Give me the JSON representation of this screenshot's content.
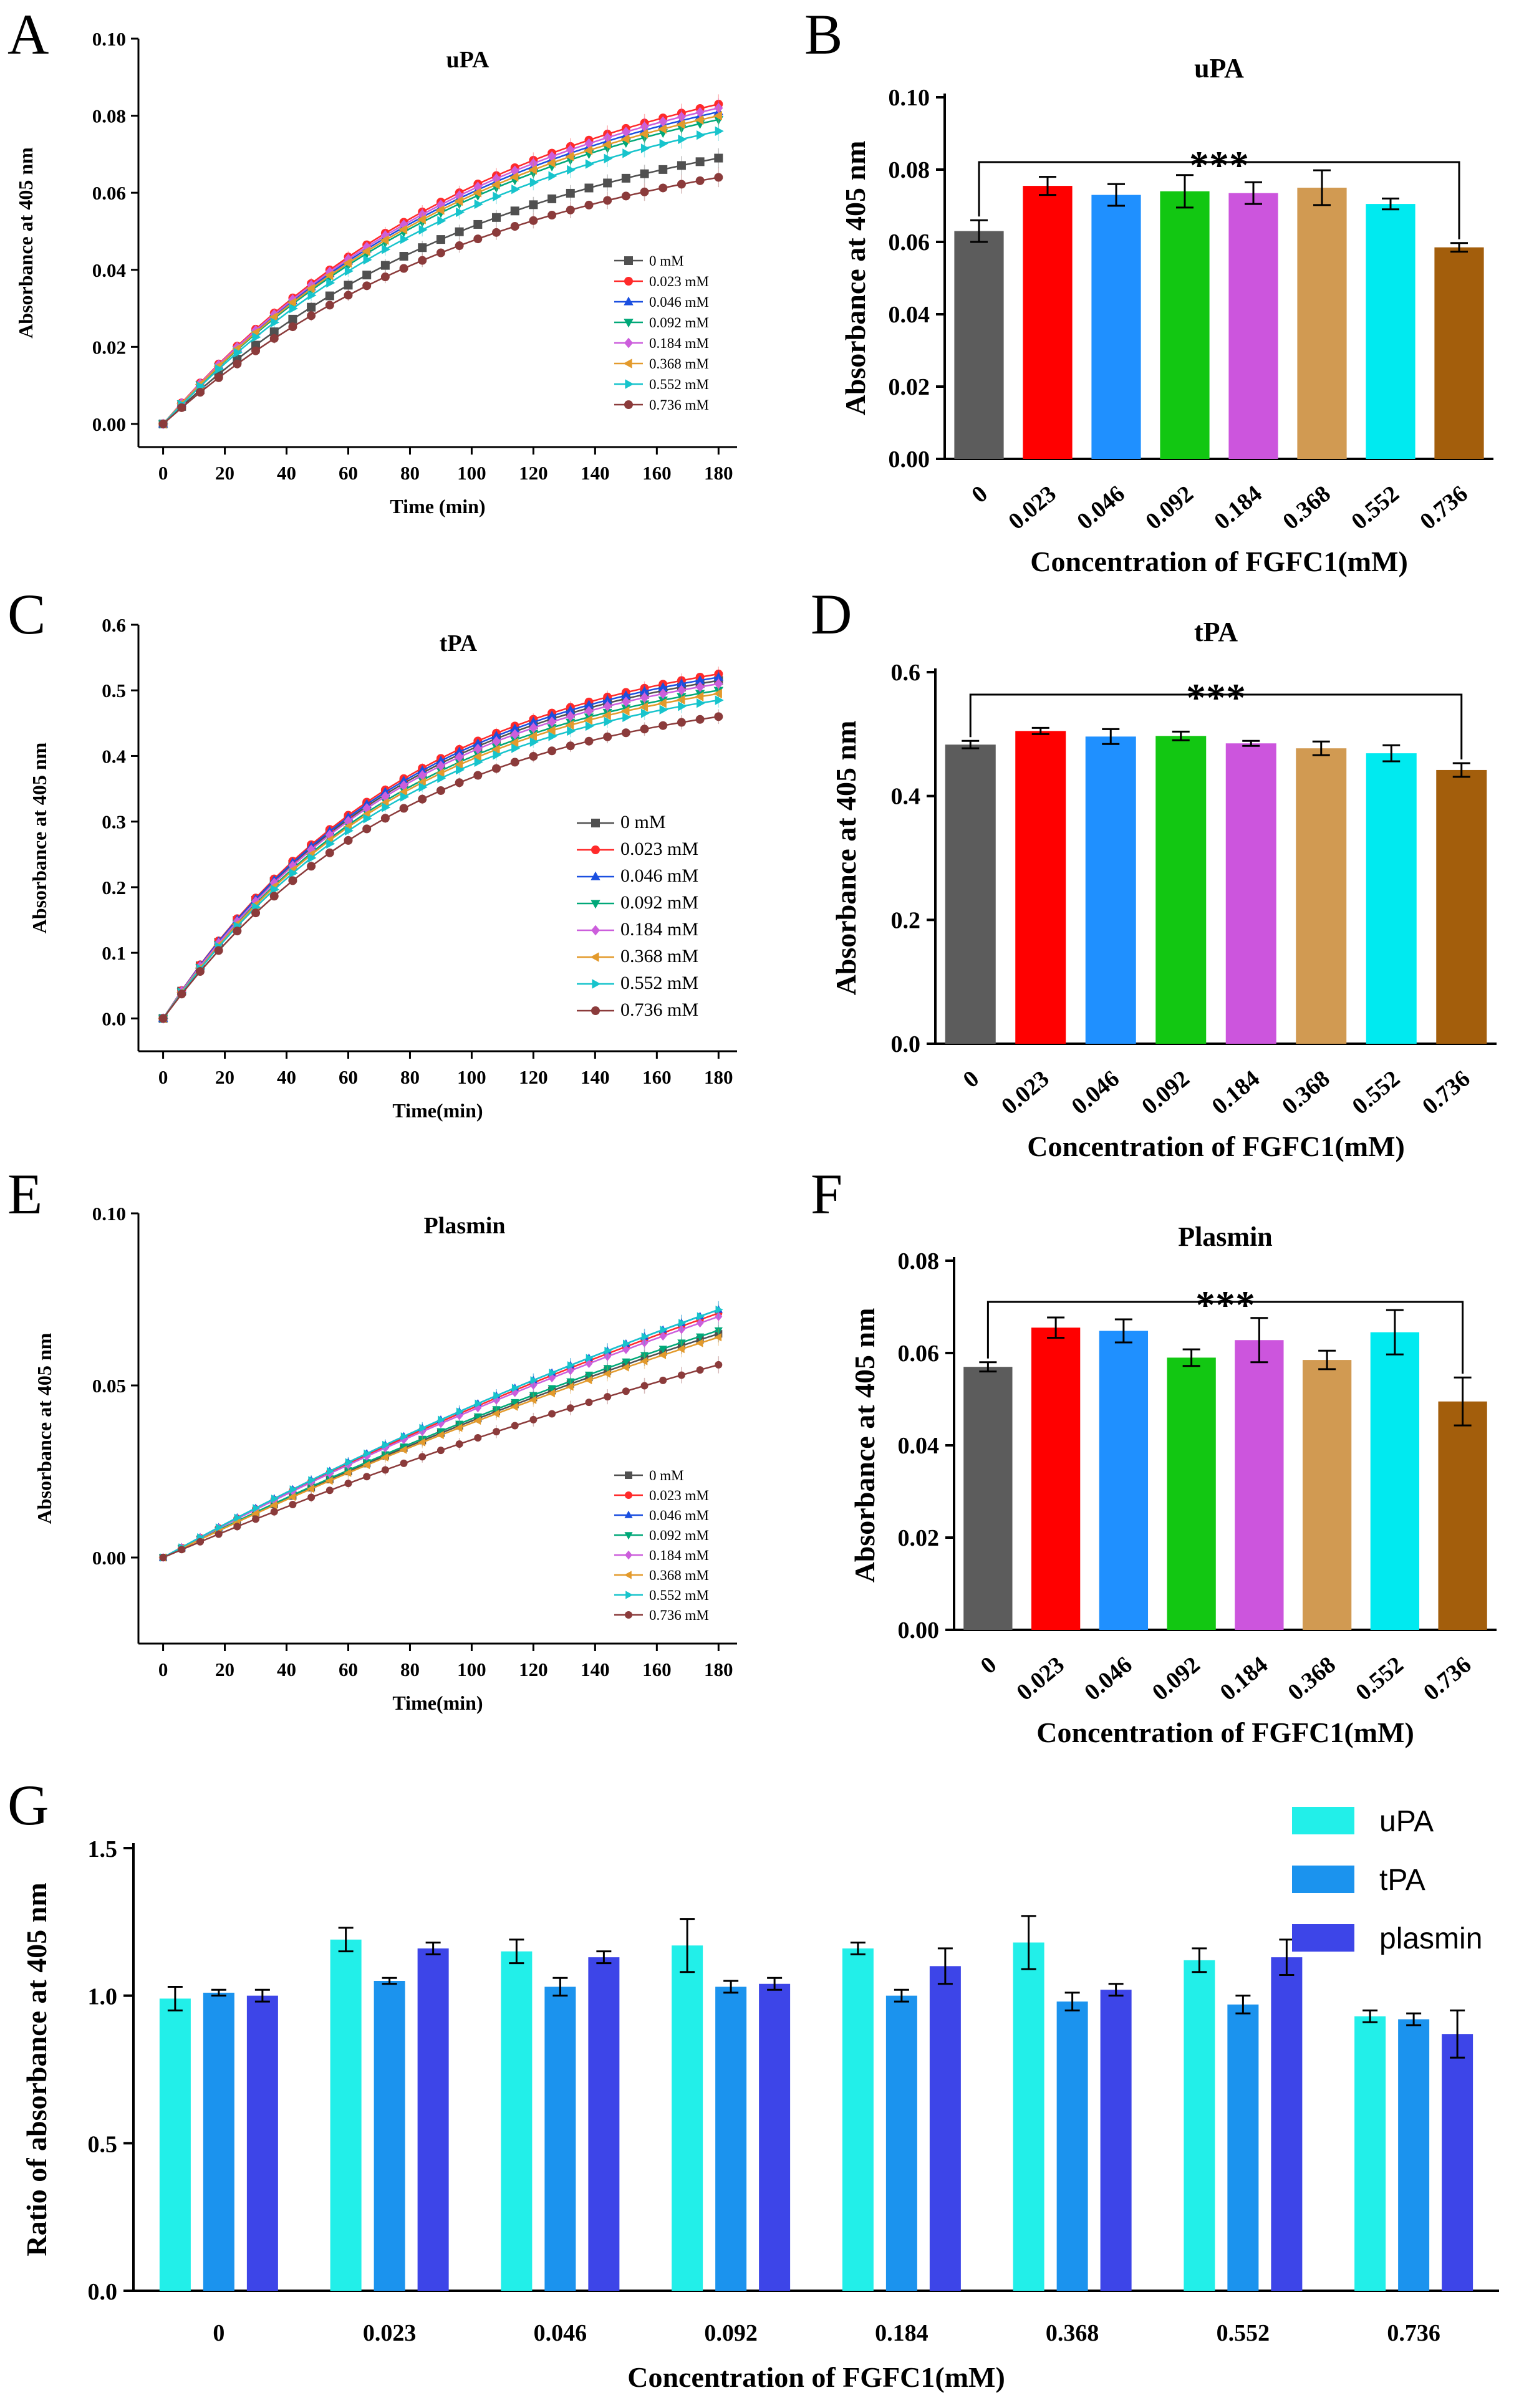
{
  "panel_labels": [
    "A",
    "B",
    "C",
    "D",
    "E",
    "F",
    "G"
  ],
  "series_colors": [
    "#505050",
    "#ff2a2a",
    "#1a4fe0",
    "#00a878",
    "#cc5edc",
    "#e39a2c",
    "#17c4cc",
    "#8b3b3b"
  ],
  "bar_colors": [
    "#5c5c5c",
    "#ff0000",
    "#1f90ff",
    "#12c712",
    "#cc55dd",
    "#d19a52",
    "#00eaf0",
    "#a35e0c"
  ],
  "chart_data": [
    {
      "type": "line",
      "panel": "A",
      "title": "uPA",
      "xlabel": "Time (min)",
      "ylabel": "Absorbance at 405 nm",
      "xlim": [
        -8,
        186
      ],
      "ylim": [
        -0.006,
        0.1
      ],
      "xticks": [
        "0",
        "20",
        "40",
        "60",
        "80",
        "100",
        "120",
        "140",
        "160",
        "180"
      ],
      "yticks": [
        "0.00",
        "0.02",
        "0.04",
        "0.06",
        "0.08",
        "0.10"
      ],
      "legend": "center-right",
      "series": [
        {
          "name": "0 mM",
          "end": 0.069
        },
        {
          "name": "0.023 mM",
          "end": 0.083
        },
        {
          "name": "0.046 mM",
          "end": 0.081
        },
        {
          "name": "0.092 mM",
          "end": 0.079
        },
        {
          "name": "0.184 mM",
          "end": 0.082
        },
        {
          "name": "0.368 mM",
          "end": 0.08
        },
        {
          "name": "0.552 mM",
          "end": 0.076
        },
        {
          "name": "0.736 mM",
          "end": 0.064
        }
      ]
    },
    {
      "type": "bar",
      "panel": "B",
      "title": "uPA",
      "xlabel": "Concentration of FGFC1(mM)",
      "ylabel": "Absorbance at 405 nm",
      "categories": [
        "0",
        "0.023",
        "0.046",
        "0.092",
        "0.184",
        "0.368",
        "0.552",
        "0.736"
      ],
      "values": [
        0.063,
        0.0755,
        0.073,
        0.074,
        0.0735,
        0.075,
        0.0705,
        0.0585
      ],
      "errors": [
        0.003,
        0.0025,
        0.003,
        0.0045,
        0.003,
        0.0048,
        0.0015,
        0.0012
      ],
      "ylim": [
        0,
        0.1
      ],
      "yticks": [
        "0.00",
        "0.02",
        "0.04",
        "0.06",
        "0.08",
        "0.10"
      ],
      "significance": "***"
    },
    {
      "type": "line",
      "panel": "C",
      "title": "tPA",
      "xlabel": "Time(min)",
      "ylabel": "Absorbance at 405 nm",
      "xlim": [
        -8,
        186
      ],
      "ylim": [
        -0.05,
        0.6
      ],
      "xticks": [
        "0",
        "20",
        "40",
        "60",
        "80",
        "100",
        "120",
        "140",
        "160",
        "180"
      ],
      "yticks": [
        "0.0",
        "0.1",
        "0.2",
        "0.3",
        "0.4",
        "0.5",
        "0.6"
      ],
      "legend": "lower-right",
      "series": [
        {
          "name": "0 mM",
          "end": 0.515
        },
        {
          "name": "0.023 mM",
          "end": 0.525
        },
        {
          "name": "0.046 mM",
          "end": 0.52
        },
        {
          "name": "0.092 mM",
          "end": 0.5
        },
        {
          "name": "0.184 mM",
          "end": 0.51
        },
        {
          "name": "0.368 mM",
          "end": 0.495
        },
        {
          "name": "0.552 mM",
          "end": 0.485
        },
        {
          "name": "0.736 mM",
          "end": 0.46
        }
      ]
    },
    {
      "type": "bar",
      "panel": "D",
      "title": "tPA",
      "xlabel": "Concentration of FGFC1(mM)",
      "ylabel": "Absorbance at 405 nm",
      "categories": [
        "0",
        "0.023",
        "0.046",
        "0.092",
        "0.184",
        "0.368",
        "0.552",
        "0.736"
      ],
      "values": [
        0.483,
        0.505,
        0.496,
        0.497,
        0.485,
        0.477,
        0.469,
        0.442
      ],
      "errors": [
        0.006,
        0.005,
        0.012,
        0.007,
        0.004,
        0.011,
        0.013,
        0.011
      ],
      "ylim": [
        0,
        0.6
      ],
      "yticks": [
        "0.0",
        "0.2",
        "0.4",
        "0.6"
      ],
      "significance": "***"
    },
    {
      "type": "line",
      "panel": "E",
      "title": "Plasmin",
      "xlabel": "Time(min)",
      "ylabel": "Absorbance at 405 nm",
      "xlim": [
        -8,
        186
      ],
      "ylim": [
        -0.025,
        0.1
      ],
      "xticks": [
        "0",
        "20",
        "40",
        "60",
        "80",
        "100",
        "120",
        "140",
        "160",
        "180"
      ],
      "yticks": [
        "0.00",
        "0.05",
        "0.10"
      ],
      "legend": "lower-right",
      "series": [
        {
          "name": "0 mM",
          "end": 0.065
        },
        {
          "name": "0.023 mM",
          "end": 0.071
        },
        {
          "name": "0.046 mM",
          "end": 0.072
        },
        {
          "name": "0.092 mM",
          "end": 0.066
        },
        {
          "name": "0.184 mM",
          "end": 0.07
        },
        {
          "name": "0.368 mM",
          "end": 0.064
        },
        {
          "name": "0.552 mM",
          "end": 0.072
        },
        {
          "name": "0.736 mM",
          "end": 0.056
        }
      ]
    },
    {
      "type": "bar",
      "panel": "F",
      "title": "Plasmin",
      "xlabel": "Concentration of FGFC1(mM)",
      "ylabel": "Absorbance at 405 nm",
      "categories": [
        "0",
        "0.023",
        "0.046",
        "0.092",
        "0.184",
        "0.368",
        "0.552",
        "0.736"
      ],
      "values": [
        0.057,
        0.0655,
        0.0648,
        0.059,
        0.0628,
        0.0585,
        0.0645,
        0.0495
      ],
      "errors": [
        0.001,
        0.0022,
        0.0025,
        0.0018,
        0.0048,
        0.002,
        0.0048,
        0.0052
      ],
      "ylim": [
        0,
        0.08
      ],
      "yticks": [
        "0.00",
        "0.02",
        "0.04",
        "0.06",
        "0.08"
      ],
      "significance": "***"
    },
    {
      "type": "bar",
      "panel": "G",
      "xlabel": "Concentration of FGFC1(mM)",
      "ylabel": "Ratio of absorbance at 405 nm",
      "categories": [
        "0",
        "0.023",
        "0.046",
        "0.092",
        "0.184",
        "0.368",
        "0.552",
        "0.736"
      ],
      "ylim": [
        0,
        1.5
      ],
      "yticks": [
        "0.0",
        "0.5",
        "1.0",
        "1.5"
      ],
      "legend": "top-right",
      "series": [
        {
          "name": "uPA",
          "values": [
            0.99,
            1.19,
            1.15,
            1.17,
            1.16,
            1.18,
            1.12,
            0.93
          ],
          "errors": [
            0.04,
            0.04,
            0.04,
            0.09,
            0.02,
            0.09,
            0.04,
            0.02
          ]
        },
        {
          "name": "tPA",
          "values": [
            1.01,
            1.05,
            1.03,
            1.03,
            1.0,
            0.98,
            0.97,
            0.92
          ],
          "errors": [
            0.01,
            0.01,
            0.03,
            0.02,
            0.02,
            0.03,
            0.03,
            0.02
          ]
        },
        {
          "name": "plasmin",
          "values": [
            1.0,
            1.16,
            1.13,
            1.04,
            1.1,
            1.02,
            1.13,
            0.87
          ],
          "errors": [
            0.02,
            0.02,
            0.02,
            0.02,
            0.06,
            0.02,
            0.06,
            0.08
          ]
        }
      ],
      "colors": [
        "#22efe9",
        "#1b93ee",
        "#3d45e8"
      ]
    }
  ]
}
